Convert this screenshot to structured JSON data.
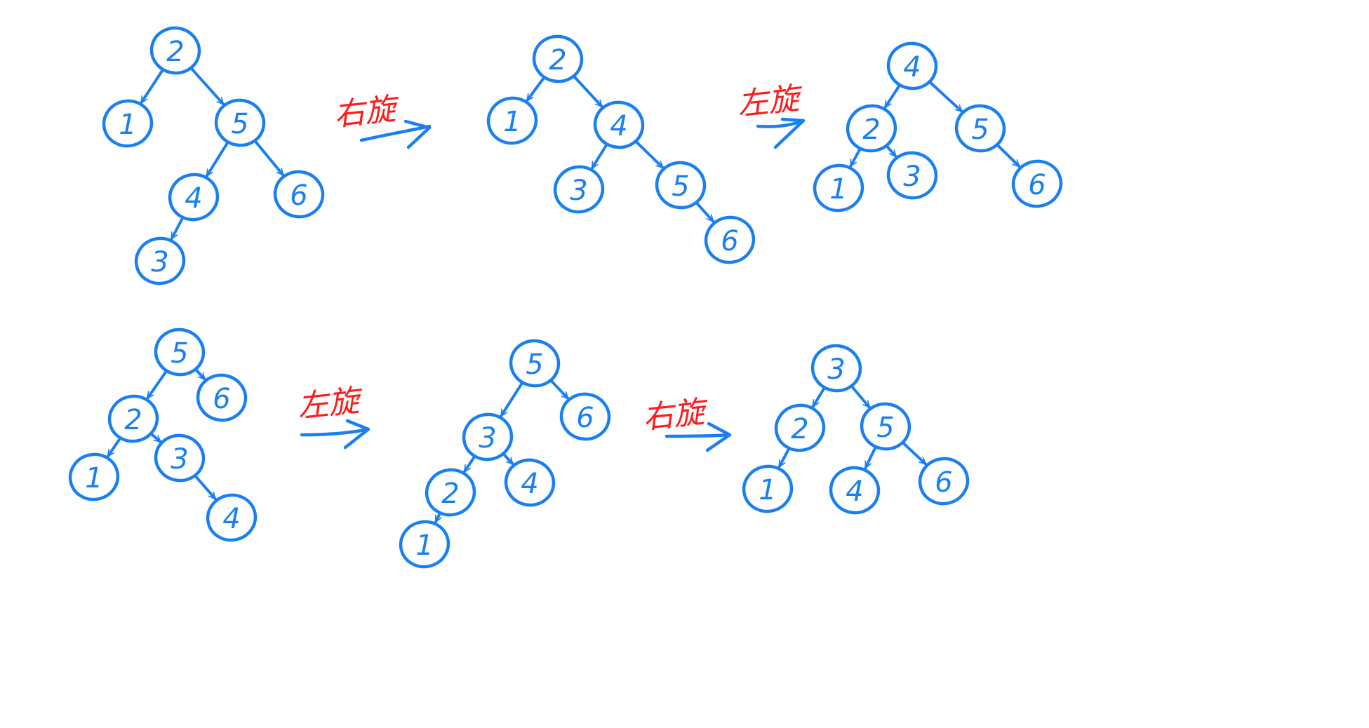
{
  "steps": [
    {
      "name": "step-1",
      "nodes": [
        {
          "id": "n2",
          "label": "2"
        },
        {
          "id": "n1",
          "label": "1"
        },
        {
          "id": "n5",
          "label": "5"
        },
        {
          "id": "n4",
          "label": "4"
        },
        {
          "id": "n6",
          "label": "6"
        },
        {
          "id": "n3",
          "label": "3"
        }
      ],
      "edges": [
        [
          "n2",
          "n1"
        ],
        [
          "n2",
          "n5"
        ],
        [
          "n5",
          "n4"
        ],
        [
          "n5",
          "n6"
        ],
        [
          "n4",
          "n3"
        ]
      ]
    },
    {
      "name": "step-2",
      "nodes": [
        {
          "id": "n2",
          "label": "2"
        },
        {
          "id": "n1",
          "label": "1"
        },
        {
          "id": "n4",
          "label": "4"
        },
        {
          "id": "n3",
          "label": "3"
        },
        {
          "id": "n5",
          "label": "5"
        },
        {
          "id": "n6",
          "label": "6"
        }
      ],
      "edges": [
        [
          "n2",
          "n1"
        ],
        [
          "n2",
          "n4"
        ],
        [
          "n4",
          "n3"
        ],
        [
          "n4",
          "n5"
        ],
        [
          "n5",
          "n6"
        ]
      ]
    },
    {
      "name": "step-3",
      "nodes": [
        {
          "id": "n4",
          "label": "4"
        },
        {
          "id": "n2",
          "label": "2"
        },
        {
          "id": "n5",
          "label": "5"
        },
        {
          "id": "n1",
          "label": "1"
        },
        {
          "id": "n3",
          "label": "3"
        },
        {
          "id": "n6",
          "label": "6"
        }
      ],
      "edges": [
        [
          "n4",
          "n2"
        ],
        [
          "n4",
          "n5"
        ],
        [
          "n2",
          "n1"
        ],
        [
          "n2",
          "n3"
        ],
        [
          "n5",
          "n6"
        ]
      ]
    },
    {
      "name": "step-4",
      "nodes": [
        {
          "id": "n5",
          "label": "5"
        },
        {
          "id": "n2",
          "label": "2"
        },
        {
          "id": "n6",
          "label": "6"
        },
        {
          "id": "n1",
          "label": "1"
        },
        {
          "id": "n3",
          "label": "3"
        },
        {
          "id": "n4",
          "label": "4"
        }
      ],
      "edges": [
        [
          "n5",
          "n2"
        ],
        [
          "n5",
          "n6"
        ],
        [
          "n2",
          "n1"
        ],
        [
          "n2",
          "n3"
        ],
        [
          "n3",
          "n4"
        ]
      ]
    },
    {
      "name": "step-5",
      "nodes": [
        {
          "id": "n5",
          "label": "5"
        },
        {
          "id": "n3",
          "label": "3"
        },
        {
          "id": "n6",
          "label": "6"
        },
        {
          "id": "n2",
          "label": "2"
        },
        {
          "id": "n4",
          "label": "4"
        },
        {
          "id": "n1",
          "label": "1"
        }
      ],
      "edges": [
        [
          "n5",
          "n3"
        ],
        [
          "n5",
          "n6"
        ],
        [
          "n3",
          "n2"
        ],
        [
          "n3",
          "n4"
        ],
        [
          "n2",
          "n1"
        ]
      ]
    },
    {
      "name": "step-6",
      "nodes": [
        {
          "id": "n3",
          "label": "3"
        },
        {
          "id": "n2",
          "label": "2"
        },
        {
          "id": "n5",
          "label": "5"
        },
        {
          "id": "n1",
          "label": "1"
        },
        {
          "id": "n4",
          "label": "4"
        },
        {
          "id": "n6",
          "label": "6"
        }
      ],
      "edges": [
        [
          "n3",
          "n2"
        ],
        [
          "n3",
          "n5"
        ],
        [
          "n2",
          "n1"
        ],
        [
          "n5",
          "n4"
        ],
        [
          "n5",
          "n6"
        ]
      ]
    }
  ],
  "rotations": [
    {
      "name": "rotation-1",
      "label": "右旋"
    },
    {
      "name": "rotation-2",
      "label": "左旋"
    },
    {
      "name": "rotation-3",
      "label": "左旋"
    },
    {
      "name": "rotation-4",
      "label": "右旋"
    }
  ],
  "colors": {
    "tree": "#1a7ff0",
    "rotation_label": "#ff1b1b"
  }
}
